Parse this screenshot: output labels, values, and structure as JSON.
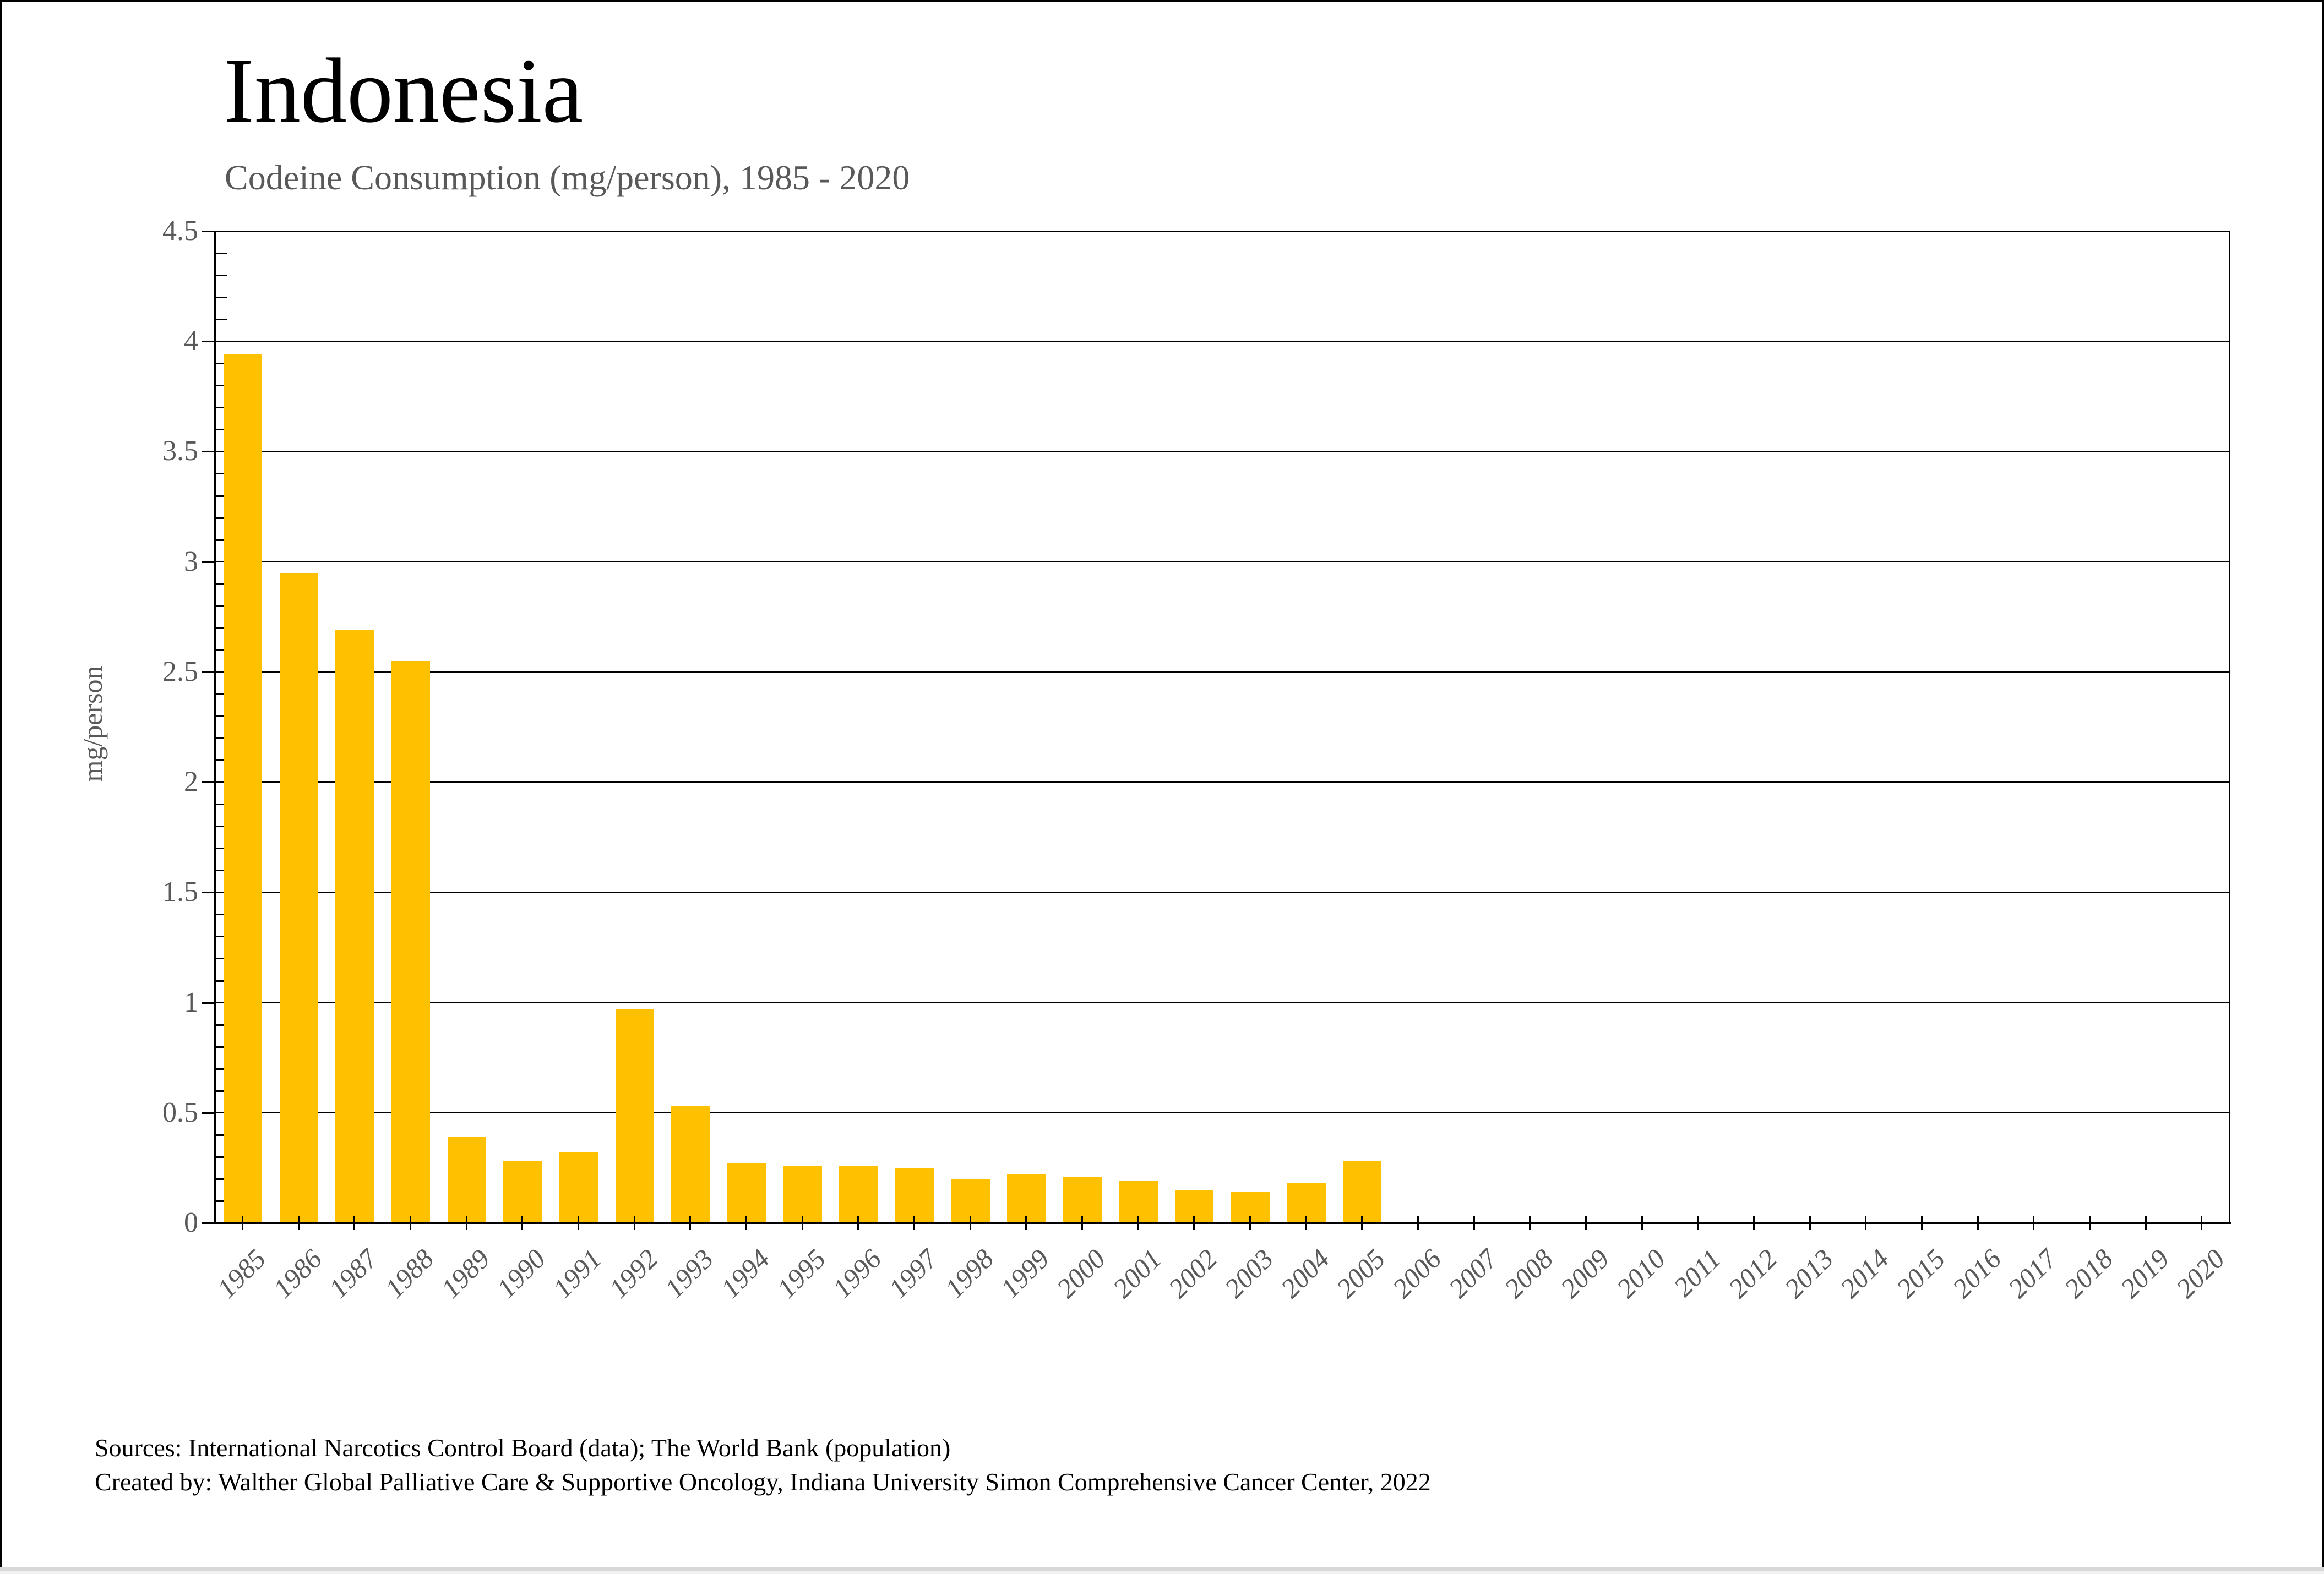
{
  "chart_data": {
    "type": "bar",
    "title": "Indonesia",
    "subtitle": "Codeine Consumption (mg/person), 1985 - 2020",
    "ylabel": "mg/person",
    "xlabel": "",
    "ylim": [
      0,
      4.5
    ],
    "ytick_step": 0.5,
    "yticks": [
      0,
      0.5,
      1,
      1.5,
      2,
      2.5,
      3,
      3.5,
      4,
      4.5
    ],
    "grid": true,
    "legend": false,
    "bar_color": "#FFC000",
    "axis_text_color": "#595959",
    "categories": [
      "1985",
      "1986",
      "1987",
      "1988",
      "1989",
      "1990",
      "1991",
      "1992",
      "1993",
      "1994",
      "1995",
      "1996",
      "1997",
      "1998",
      "1999",
      "2000",
      "2001",
      "2002",
      "2003",
      "2004",
      "2005",
      "2006",
      "2007",
      "2008",
      "2009",
      "2010",
      "2011",
      "2012",
      "2013",
      "2014",
      "2015",
      "2016",
      "2017",
      "2018",
      "2019",
      "2020"
    ],
    "values": [
      3.94,
      2.95,
      2.69,
      2.55,
      0.39,
      0.28,
      0.32,
      0.97,
      0.53,
      0.27,
      0.26,
      0.26,
      0.25,
      0.2,
      0.22,
      0.21,
      0.19,
      0.15,
      0.14,
      0.18,
      0.28,
      0,
      0,
      0,
      0,
      0,
      0,
      0,
      0,
      0,
      0,
      0,
      0,
      0,
      0,
      0
    ]
  },
  "footer": {
    "line1": "Sources: International Narcotics Control Board (data); The World Bank (population)",
    "line2": "Created by: Walther Global Palliative Care & Supportive Oncology, Indiana University Simon Comprehensive Cancer Center, 2022"
  }
}
